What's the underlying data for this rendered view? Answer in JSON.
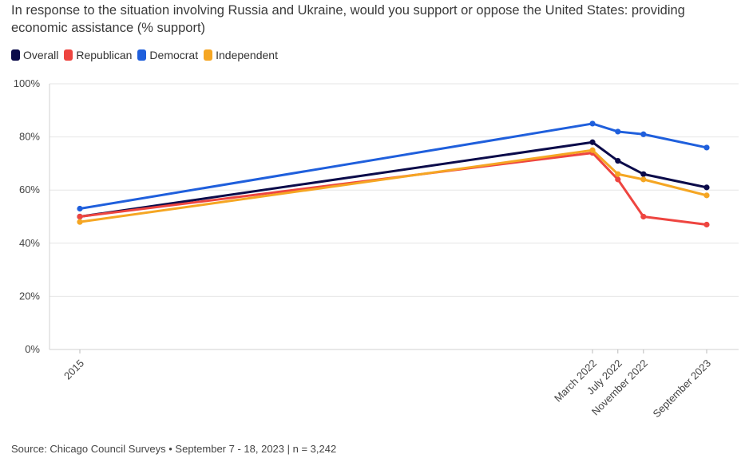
{
  "title": "In response to the situation involving Russia and Ukraine, would you support or oppose the United States: providing economic assistance (% support)",
  "source": "Source: Chicago Council Surveys • September 7 - 18, 2023 | n = 3,242",
  "chart_data": {
    "type": "line",
    "title": "In response to the situation involving Russia and Ukraine, would you support or oppose the United States: providing economic assistance (% support)",
    "xlabel": "",
    "ylabel": "",
    "categories": [
      "2015",
      "March 2022",
      "July 2022",
      "November 2022",
      "September 2023"
    ],
    "x_dates": [
      "2015-06-01",
      "2022-03-01",
      "2022-07-01",
      "2022-11-01",
      "2023-09-01"
    ],
    "ylim": [
      0,
      100
    ],
    "y_ticks": [
      0,
      20,
      40,
      60,
      80,
      100
    ],
    "y_tick_labels": [
      "0%",
      "20%",
      "40%",
      "60%",
      "80%",
      "100%"
    ],
    "grid": true,
    "legend_position": "top-left",
    "series": [
      {
        "name": "Overall",
        "color": "#0b0b4a",
        "values": [
          50,
          78,
          71,
          66,
          61
        ]
      },
      {
        "name": "Republican",
        "color": "#ee4540",
        "values": [
          50,
          74,
          64,
          50,
          47
        ]
      },
      {
        "name": "Democrat",
        "color": "#1f5fdc",
        "values": [
          53,
          85,
          82,
          81,
          76
        ]
      },
      {
        "name": "Independent",
        "color": "#f5a623",
        "values": [
          48,
          75,
          66,
          64,
          58
        ]
      }
    ]
  }
}
